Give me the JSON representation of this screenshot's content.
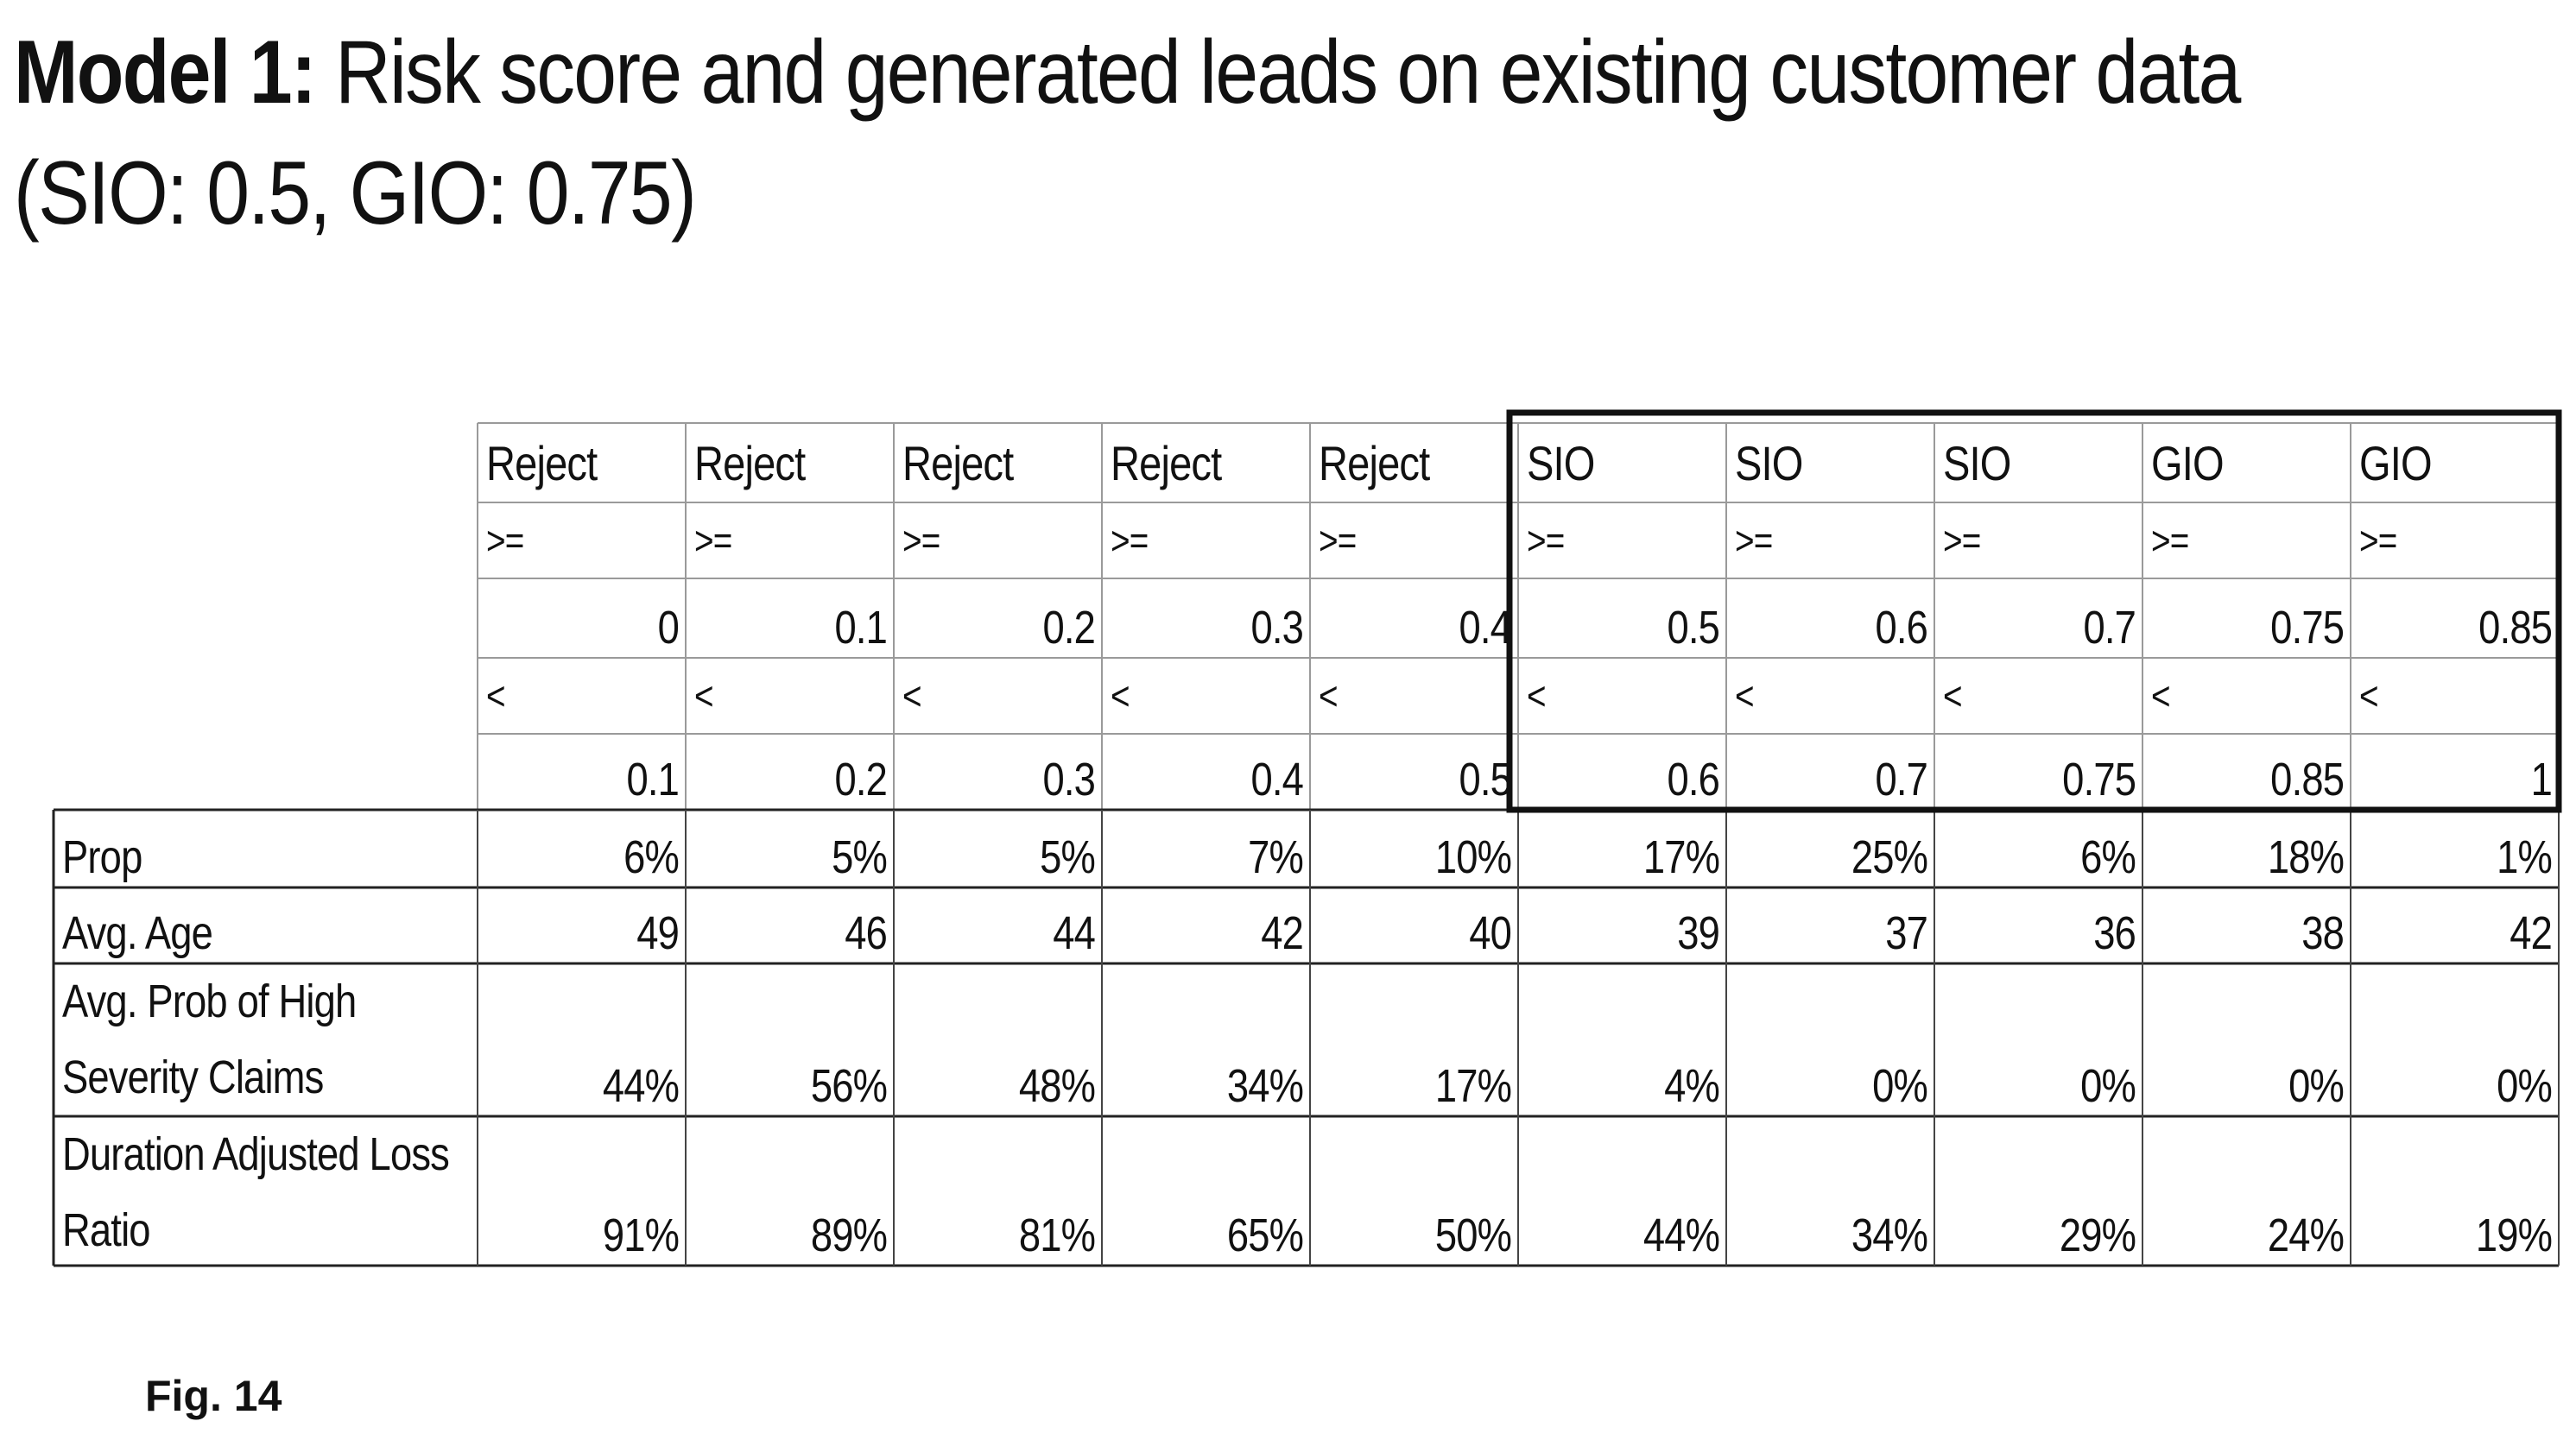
{
  "title": {
    "bold_part": "Model 1:",
    "rest": " Risk score and generated leads on existing customer data",
    "line2": "(SIO: 0.5, GIO: 0.75)"
  },
  "table": {
    "columns": [
      {
        "group": "Reject",
        "op_low": ">=",
        "low": "0",
        "op_high": "<",
        "high": "0.1"
      },
      {
        "group": "Reject",
        "op_low": ">=",
        "low": "0.1",
        "op_high": "<",
        "high": "0.2"
      },
      {
        "group": "Reject",
        "op_low": ">=",
        "low": "0.2",
        "op_high": "<",
        "high": "0.3"
      },
      {
        "group": "Reject",
        "op_low": ">=",
        "low": "0.3",
        "op_high": "<",
        "high": "0.4"
      },
      {
        "group": "Reject",
        "op_low": ">=",
        "low": "0.4",
        "op_high": "<",
        "high": "0.5"
      },
      {
        "group": "SIO",
        "op_low": ">=",
        "low": "0.5",
        "op_high": "<",
        "high": "0.6"
      },
      {
        "group": "SIO",
        "op_low": ">=",
        "low": "0.6",
        "op_high": "<",
        "high": "0.7"
      },
      {
        "group": "SIO",
        "op_low": ">=",
        "low": "0.7",
        "op_high": "<",
        "high": "0.75"
      },
      {
        "group": "GIO",
        "op_low": ">=",
        "low": "0.75",
        "op_high": "<",
        "high": "0.85"
      },
      {
        "group": "GIO",
        "op_low": ">=",
        "low": "0.85",
        "op_high": "<",
        "high": "1"
      }
    ],
    "rows": [
      {
        "label": "Prop",
        "values": [
          "6%",
          "5%",
          "5%",
          "7%",
          "10%",
          "17%",
          "25%",
          "6%",
          "18%",
          "1%"
        ]
      },
      {
        "label": "Avg. Age",
        "values": [
          "49",
          "46",
          "44",
          "42",
          "40",
          "39",
          "37",
          "36",
          "38",
          "42"
        ]
      },
      {
        "label": "Avg. Prob of High Severity Claims",
        "values": [
          "44%",
          "56%",
          "48%",
          "34%",
          "17%",
          "4%",
          "0%",
          "0%",
          "0%",
          "0%"
        ]
      },
      {
        "label": "Duration Adjusted Loss Ratio",
        "values": [
          "91%",
          "89%",
          "81%",
          "65%",
          "50%",
          "44%",
          "34%",
          "29%",
          "24%",
          "19%"
        ]
      }
    ]
  },
  "figure_label": "Fig. 14"
}
